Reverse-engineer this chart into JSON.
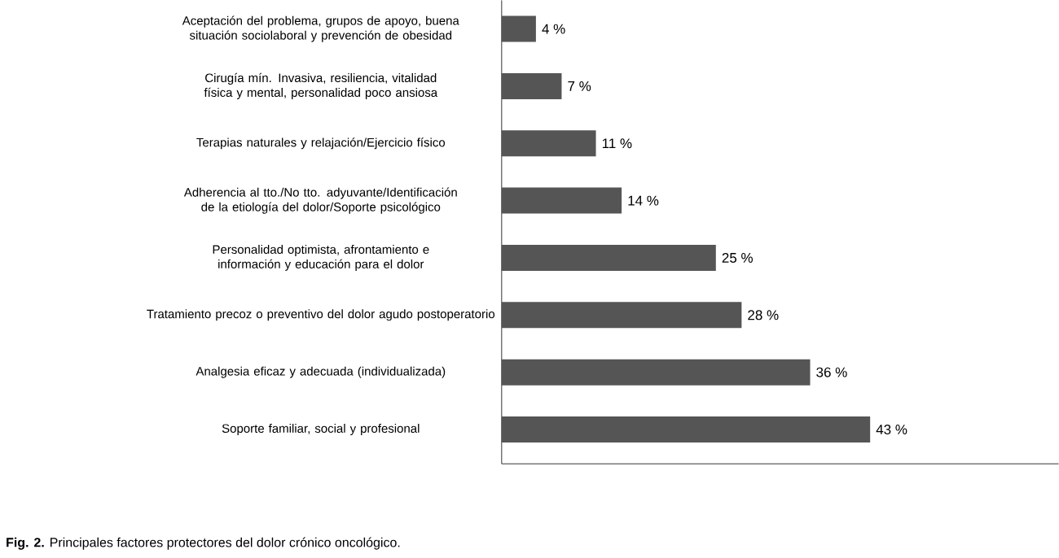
{
  "chart_data": {
    "type": "bar",
    "orientation": "horizontal",
    "categories": [
      "Aceptación del problema, grupos de apoyo, buena situación sociolaboral y prevención de obesidad",
      "Cirugía mín. Invasiva, resiliencia, vitalidad física y mental, personalidad poco ansiosa",
      "Terapias naturales y relajación/Ejercicio físico",
      "Adherencia al tto./No tto. adyuvante/Identificación de la etiología del dolor/Soporte psicológico",
      "Personalidad optimista, afrontamiento e información y educación para el dolor",
      "Tratamiento precoz o preventivo del dolor agudo postoperatorio",
      "Analgesia eficaz y adecuada (individualizada)",
      "Soporte familiar, social y profesional"
    ],
    "values": [
      4,
      7,
      11,
      14,
      25,
      28,
      36,
      43
    ],
    "value_labels": [
      "4 %",
      "7 %",
      "11 %",
      "14 %",
      "25 %",
      "28 %",
      "36 %",
      "43 %"
    ],
    "color": "#555555",
    "xlim": [
      0,
      65
    ],
    "tick_labels": "y",
    "annotations": [
      "**Fig. 2.** Principales factores protectores del dolor crónico oncológico."
    ]
  }
}
